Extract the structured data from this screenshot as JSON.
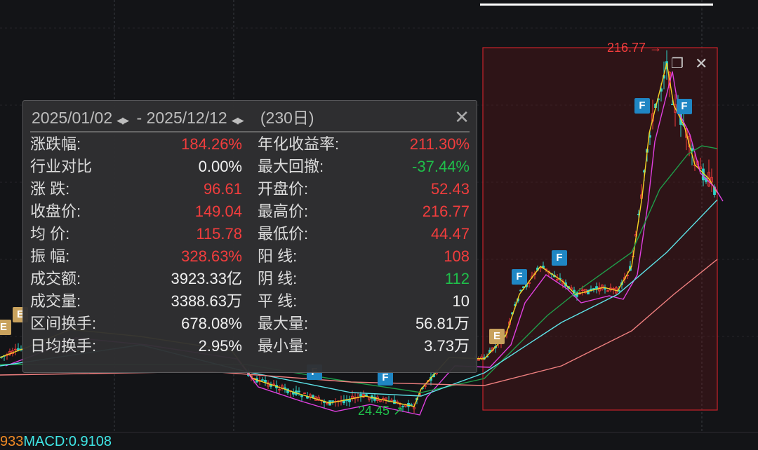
{
  "popup": {
    "start_date": "2025/01/02",
    "end_date": "2025/12/12",
    "separator": "-",
    "days": "(230日)",
    "rows": [
      {
        "l_label": "涨跌幅:",
        "l_value": "184.26%",
        "l_color": "red",
        "r_label": "年化收益率:",
        "r_value": "211.30%",
        "r_color": "red"
      },
      {
        "l_label": "行业对比",
        "l_value": "0.00%",
        "l_color": "white",
        "r_label": "最大回撤:",
        "r_value": "-37.44%",
        "r_color": "green"
      },
      {
        "l_label": "涨    跌:",
        "l_value": "96.61",
        "l_color": "red",
        "r_label": "开盘价:",
        "r_value": "52.43",
        "r_color": "red"
      },
      {
        "l_label": "收盘价:",
        "l_value": "149.04",
        "l_color": "red",
        "r_label": "最高价:",
        "r_value": "216.77",
        "r_color": "red"
      },
      {
        "l_label": "均    价:",
        "l_value": "115.78",
        "l_color": "red",
        "r_label": "最低价:",
        "r_value": "44.47",
        "r_color": "red"
      },
      {
        "l_label": "振    幅:",
        "l_value": "328.63%",
        "l_color": "red",
        "r_label": "阳    线:",
        "r_value": "108",
        "r_color": "red"
      },
      {
        "l_label": "成交额:",
        "l_value": "3923.33亿",
        "l_color": "white",
        "r_label": "阴    线:",
        "r_value": "112",
        "r_color": "green"
      },
      {
        "l_label": "成交量:",
        "l_value": "3388.63万",
        "l_color": "white",
        "r_label": "平    线:",
        "r_value": "10",
        "r_color": "white"
      },
      {
        "l_label": "区间换手:",
        "l_value": "678.08%",
        "l_color": "white",
        "r_label": "最大量:",
        "r_value": "56.81万",
        "r_color": "white"
      },
      {
        "l_label": "日均换手:",
        "l_value": "2.95%",
        "l_color": "white",
        "r_label": "最小量:",
        "r_value": "3.73万",
        "r_color": "white"
      }
    ]
  },
  "chart": {
    "high_marker": "216.77",
    "low_marker": "24.45",
    "badges": {
      "f": "F",
      "e": "E"
    },
    "selection_color": "#c8222a",
    "up_color": "#f23d3d",
    "down_color": "#1fbf4a"
  },
  "indicator": {
    "prev_value": "933",
    "macd": "MACD:0.9108",
    "prev_color": "#f08a24",
    "macd_color": "#3fe6e6"
  }
}
